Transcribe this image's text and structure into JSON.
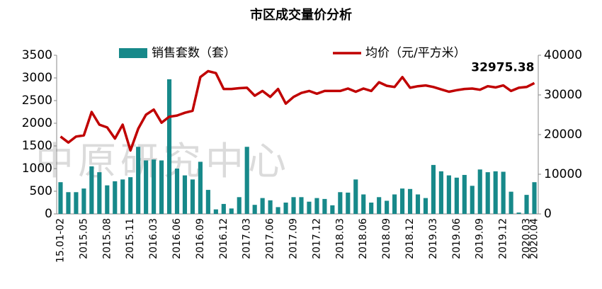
{
  "chart_data": {
    "type": "bar-line",
    "title": "市区成交量价分析",
    "watermark": "中原研究中心",
    "categories": [
      "15.01-02",
      null,
      null,
      "2015.05",
      null,
      null,
      "2015.08",
      null,
      null,
      "2015.11",
      null,
      null,
      "2016.03",
      null,
      null,
      "2016.06",
      null,
      null,
      "2016.09",
      null,
      null,
      "2016.12",
      null,
      null,
      "2017.03",
      null,
      null,
      "2017.06",
      null,
      null,
      "2017.09",
      null,
      null,
      "2017.12",
      null,
      null,
      "2018.03",
      null,
      null,
      "2018.06",
      null,
      null,
      "2018.09",
      null,
      null,
      "2018.12",
      null,
      null,
      "2019.03",
      null,
      null,
      "2019.06",
      null,
      null,
      "2019.09",
      null,
      null,
      "2019.12",
      null,
      null,
      "2020.03",
      "2020.04"
    ],
    "series": [
      {
        "name": "销售套数（套）",
        "color": "#17898a",
        "values": [
          700,
          480,
          480,
          560,
          1050,
          920,
          630,
          720,
          760,
          810,
          1480,
          1180,
          1200,
          1180,
          2970,
          1000,
          850,
          760,
          1150,
          530,
          100,
          220,
          120,
          370,
          1480,
          200,
          350,
          300,
          150,
          250,
          370,
          370,
          270,
          350,
          330,
          190,
          480,
          470,
          760,
          430,
          250,
          370,
          290,
          430,
          560,
          550,
          430,
          350,
          1080,
          940,
          850,
          800,
          860,
          620,
          980,
          920,
          940,
          930,
          490,
          30,
          420,
          700
        ]
      },
      {
        "name": "均价（元/平方米）",
        "color": "#c00000",
        "axis": "y2",
        "values": [
          19500,
          18000,
          19500,
          19800,
          25700,
          22500,
          21800,
          19000,
          22500,
          16000,
          21500,
          25000,
          26300,
          23000,
          24500,
          24800,
          25500,
          26000,
          34500,
          36000,
          35500,
          31500,
          31500,
          31700,
          31800,
          29800,
          31000,
          29500,
          31500,
          27800,
          29500,
          30500,
          31000,
          30300,
          31000,
          31000,
          31000,
          31600,
          30800,
          31600,
          31000,
          33200,
          32300,
          32000,
          34500,
          31800,
          32200,
          32400,
          32000,
          31400,
          30800,
          31200,
          31500,
          31600,
          31300,
          32200,
          31900,
          32400,
          31000,
          31800,
          32000,
          32975.38
        ],
        "value_labels": {
          "61": "32975.38"
        }
      }
    ],
    "ylim": [
      0,
      3500
    ],
    "yticks": [
      0,
      500,
      1000,
      1500,
      2000,
      2500,
      3000,
      3500
    ],
    "y2lim": [
      0,
      40000
    ],
    "y2ticks": [
      0,
      10000,
      20000,
      30000,
      40000
    ]
  }
}
